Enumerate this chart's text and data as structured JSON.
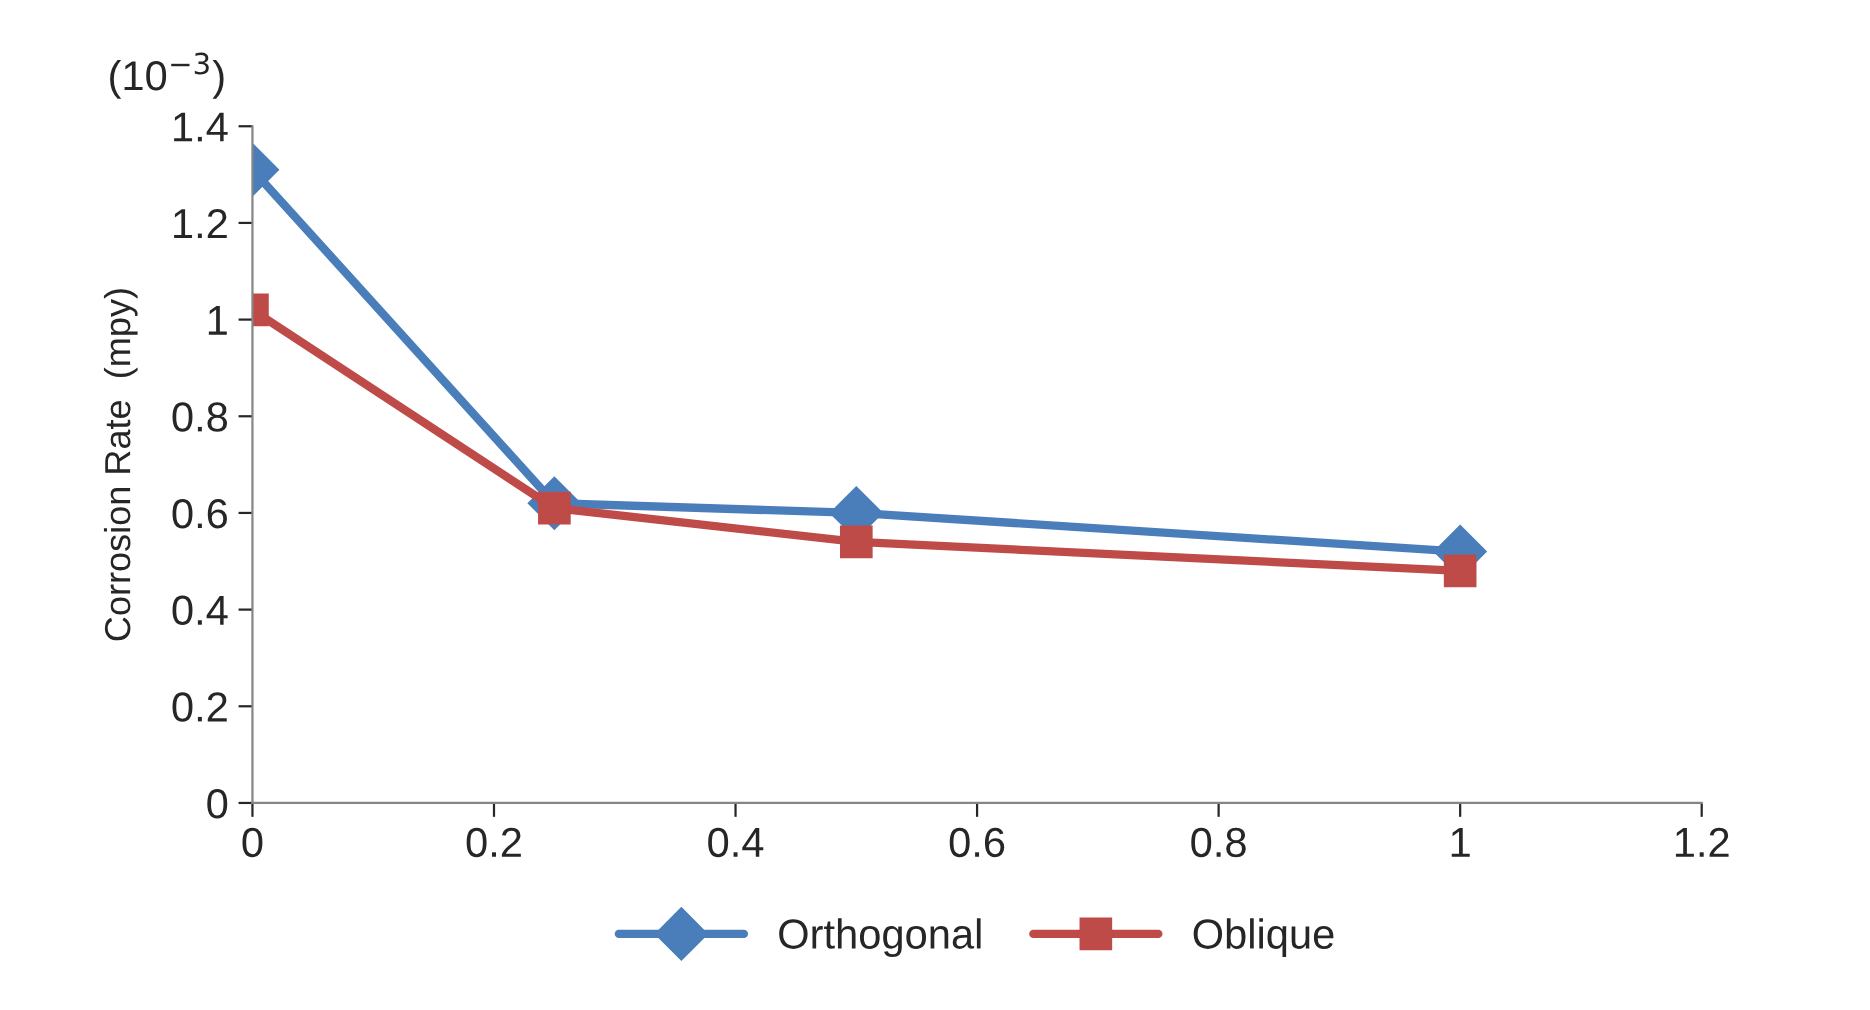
{
  "chart_data": {
    "type": "line",
    "ylabel": "Corrosion Rate  (mpy)",
    "annotations": [
      "(10$^{−3}$)"
    ],
    "x": [
      0,
      0.25,
      0.5,
      1
    ],
    "series": [
      {
        "name": "Orthogonal",
        "color": "#4a7ebb",
        "marker": "diamond",
        "values": [
          1.31,
          0.62,
          0.6,
          0.52
        ]
      },
      {
        "name": "Oblique",
        "color": "#be4b48",
        "marker": "square",
        "values": [
          1.02,
          0.61,
          0.54,
          0.48
        ]
      }
    ],
    "xlim": [
      0,
      1.2
    ],
    "xticks": [
      0,
      0.2,
      0.4,
      0.6,
      0.8,
      1,
      1.2
    ],
    "ylim": [
      0,
      1.4
    ],
    "yticks": [
      0,
      0.2,
      0.4,
      0.6,
      0.8,
      1,
      1.2,
      1.4
    ],
    "grid": false,
    "legend": "bottom",
    "line_style": "solid"
  }
}
